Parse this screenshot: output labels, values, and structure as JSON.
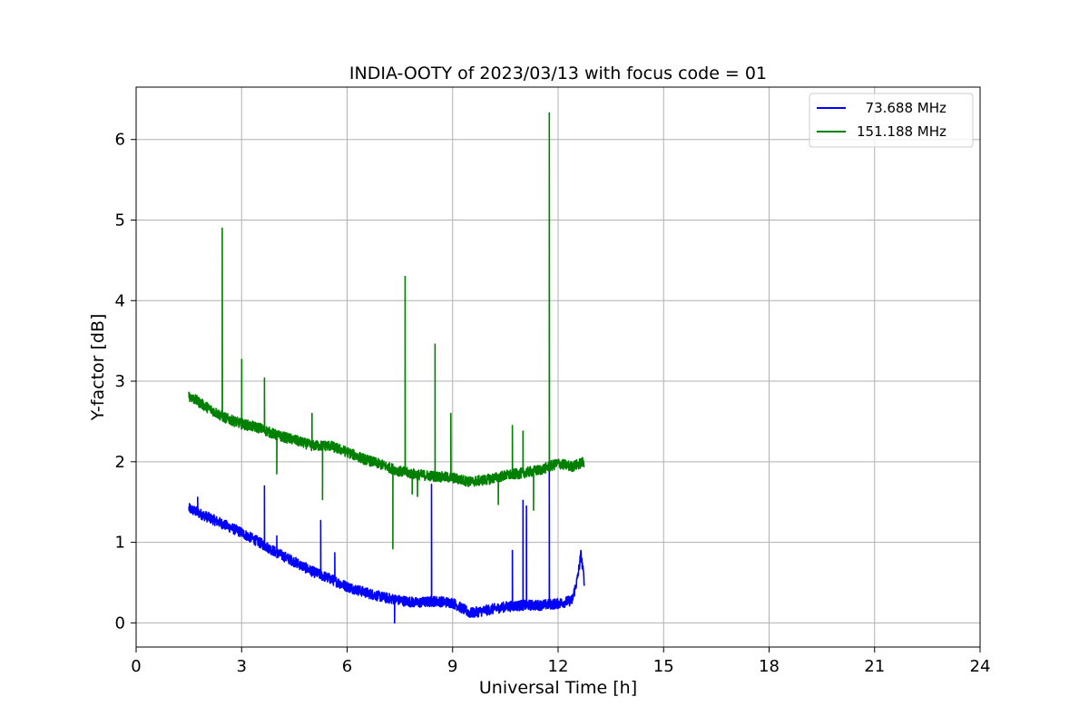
{
  "chart_data": {
    "type": "line",
    "title": "INDIA-OOTY of 2023/03/13 with focus code = 01",
    "xlabel": "Universal Time [h]",
    "ylabel": "Y-factor [dB]",
    "xlim": [
      0,
      24
    ],
    "ylim": [
      -0.3,
      6.65
    ],
    "xticks": [
      "0",
      "3",
      "6",
      "9",
      "12",
      "15",
      "18",
      "21",
      "24"
    ],
    "yticks": [
      "0",
      "1",
      "2",
      "3",
      "4",
      "5",
      "6"
    ],
    "grid": true,
    "legend_position": "top-right",
    "series": [
      {
        "name": "  73.688 MHz",
        "color": "#0000ff",
        "baseline": [
          [
            1.5,
            1.42
          ],
          [
            2.0,
            1.32
          ],
          [
            2.5,
            1.22
          ],
          [
            3.0,
            1.12
          ],
          [
            3.5,
            1.0
          ],
          [
            4.0,
            0.87
          ],
          [
            4.5,
            0.76
          ],
          [
            5.0,
            0.64
          ],
          [
            5.5,
            0.55
          ],
          [
            6.0,
            0.45
          ],
          [
            6.5,
            0.38
          ],
          [
            7.0,
            0.32
          ],
          [
            7.5,
            0.28
          ],
          [
            8.0,
            0.25
          ],
          [
            8.5,
            0.27
          ],
          [
            9.0,
            0.25
          ],
          [
            9.5,
            0.12
          ],
          [
            10.0,
            0.16
          ],
          [
            10.5,
            0.2
          ],
          [
            11.0,
            0.22
          ],
          [
            11.5,
            0.22
          ],
          [
            12.0,
            0.24
          ],
          [
            12.4,
            0.28
          ],
          [
            12.55,
            0.55
          ],
          [
            12.65,
            0.85
          ],
          [
            12.75,
            0.5
          ]
        ],
        "spikes": [
          [
            1.75,
            1.56
          ],
          [
            3.65,
            1.7
          ],
          [
            4.0,
            1.08
          ],
          [
            5.25,
            1.27
          ],
          [
            5.65,
            0.87
          ],
          [
            7.35,
            0.0
          ],
          [
            8.4,
            1.72
          ],
          [
            10.7,
            0.9
          ],
          [
            11.0,
            1.52
          ],
          [
            11.1,
            1.45
          ],
          [
            11.75,
            1.88
          ]
        ]
      },
      {
        "name": "151.188 MHz",
        "color": "#008000",
        "baseline": [
          [
            1.5,
            2.82
          ],
          [
            2.0,
            2.68
          ],
          [
            2.5,
            2.55
          ],
          [
            3.0,
            2.47
          ],
          [
            3.5,
            2.42
          ],
          [
            4.0,
            2.33
          ],
          [
            4.5,
            2.27
          ],
          [
            5.0,
            2.2
          ],
          [
            5.5,
            2.2
          ],
          [
            6.0,
            2.12
          ],
          [
            6.5,
            2.03
          ],
          [
            7.0,
            1.96
          ],
          [
            7.5,
            1.88
          ],
          [
            8.0,
            1.84
          ],
          [
            8.5,
            1.82
          ],
          [
            9.0,
            1.8
          ],
          [
            9.5,
            1.75
          ],
          [
            10.0,
            1.78
          ],
          [
            10.5,
            1.83
          ],
          [
            11.0,
            1.86
          ],
          [
            11.5,
            1.9
          ],
          [
            12.0,
            1.98
          ],
          [
            12.4,
            1.94
          ],
          [
            12.75,
            2.0
          ]
        ],
        "spikes": [
          [
            2.45,
            4.9
          ],
          [
            3.0,
            3.27
          ],
          [
            3.65,
            3.04
          ],
          [
            4.0,
            1.85
          ],
          [
            5.0,
            2.6
          ],
          [
            5.3,
            1.53
          ],
          [
            7.3,
            0.92
          ],
          [
            7.65,
            4.3
          ],
          [
            7.85,
            1.6
          ],
          [
            8.0,
            1.57
          ],
          [
            8.5,
            3.46
          ],
          [
            8.95,
            2.6
          ],
          [
            10.3,
            1.47
          ],
          [
            10.7,
            2.45
          ],
          [
            11.0,
            2.38
          ],
          [
            11.3,
            1.4
          ],
          [
            11.75,
            6.33
          ]
        ]
      }
    ]
  }
}
